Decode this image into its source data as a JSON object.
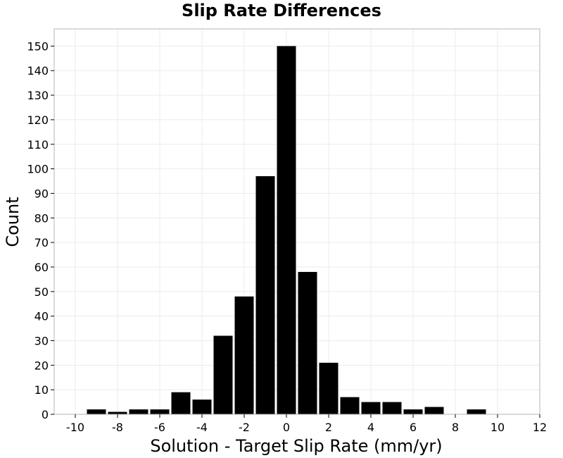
{
  "chart_data": {
    "type": "bar",
    "title": "Slip Rate Differences",
    "xlabel": "Solution - Target Slip Rate (mm/yr)",
    "ylabel": "Count",
    "xlim": [
      -11,
      12
    ],
    "ylim": [
      0,
      157
    ],
    "grid": true,
    "bar_color": "#000000",
    "bin_width": 1,
    "x_ticks": [
      -10,
      -8,
      -6,
      -4,
      -2,
      0,
      2,
      4,
      6,
      8,
      10,
      12
    ],
    "y_ticks": [
      0,
      10,
      20,
      30,
      40,
      50,
      60,
      70,
      80,
      90,
      100,
      110,
      120,
      130,
      140,
      150
    ],
    "x": [
      -10,
      -9,
      -8,
      -7,
      -6,
      -5,
      -4,
      -3,
      -2,
      -1,
      0,
      1,
      2,
      3,
      4,
      5,
      6,
      7,
      8,
      9,
      10,
      11
    ],
    "values": [
      0,
      2,
      1,
      2,
      2,
      9,
      6,
      32,
      48,
      97,
      150,
      58,
      21,
      7,
      5,
      5,
      2,
      3,
      0,
      2,
      0,
      0
    ]
  }
}
